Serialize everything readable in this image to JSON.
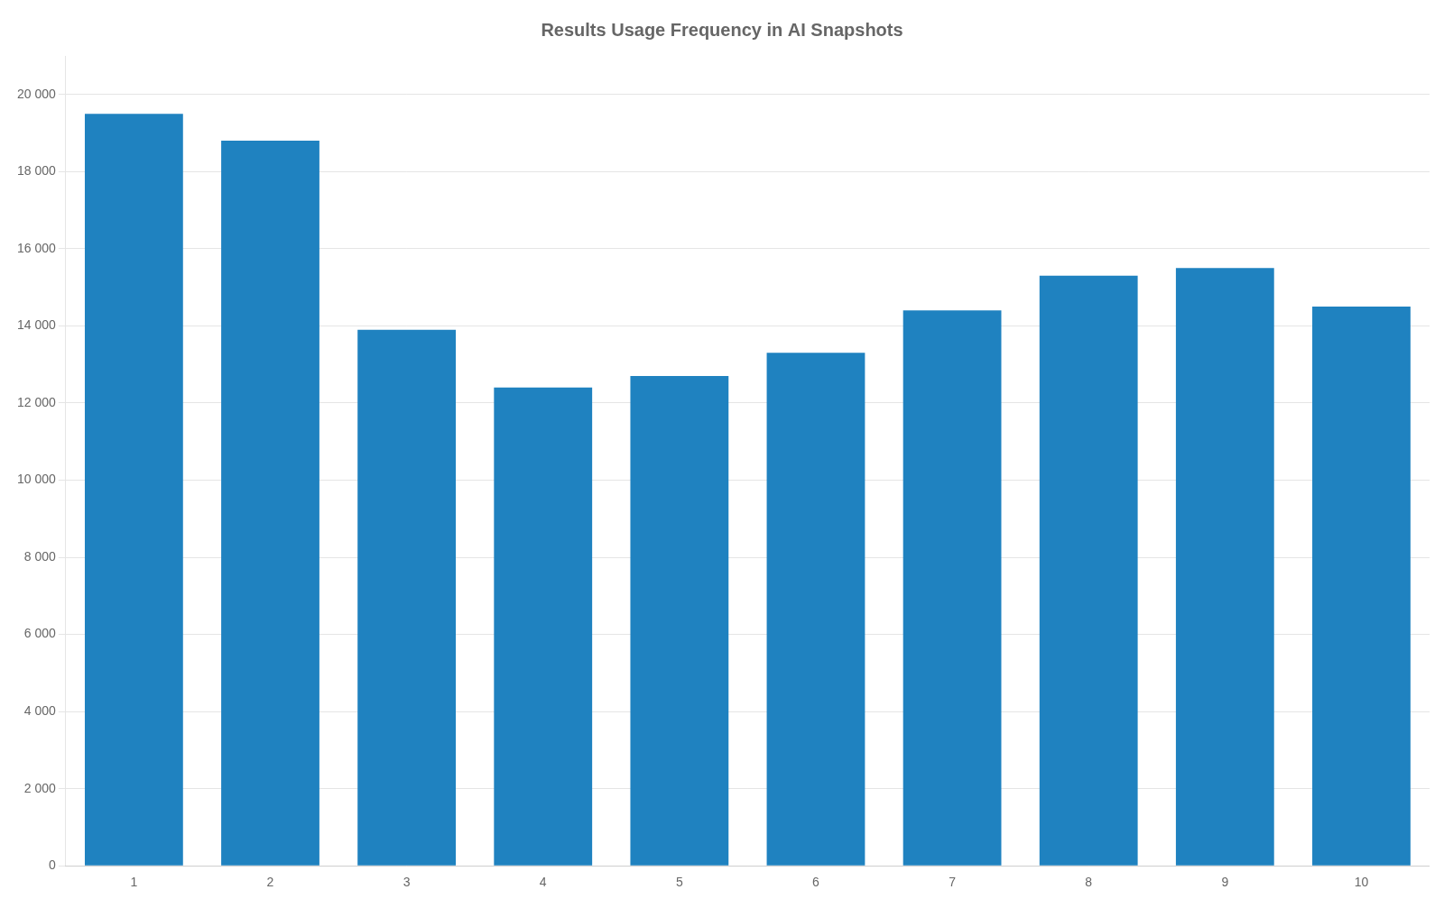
{
  "chart_data": {
    "type": "bar",
    "title": "Results Usage Frequency in AI Snapshots",
    "categories": [
      "1",
      "2",
      "3",
      "4",
      "5",
      "6",
      "7",
      "8",
      "9",
      "10"
    ],
    "values": [
      19500,
      18800,
      13900,
      12400,
      12700,
      13300,
      14400,
      15300,
      15500,
      14500
    ],
    "color": "#1f82c0",
    "ylim": [
      0,
      21000
    ],
    "yticks": [
      0,
      {
        "value": 2000,
        "label": "2 000"
      },
      {
        "value": 4000,
        "label": "4 000"
      },
      {
        "value": 6000,
        "label": "6 000"
      },
      {
        "value": 8000,
        "label": "8 000"
      },
      {
        "value": 10000,
        "label": "10 000"
      },
      {
        "value": 12000,
        "label": "12 000"
      },
      {
        "value": 14000,
        "label": "14 000"
      },
      {
        "value": 16000,
        "label": "16 000"
      },
      {
        "value": 18000,
        "label": "18 000"
      },
      {
        "value": 20000,
        "label": "20 000"
      }
    ],
    "grid": true
  }
}
